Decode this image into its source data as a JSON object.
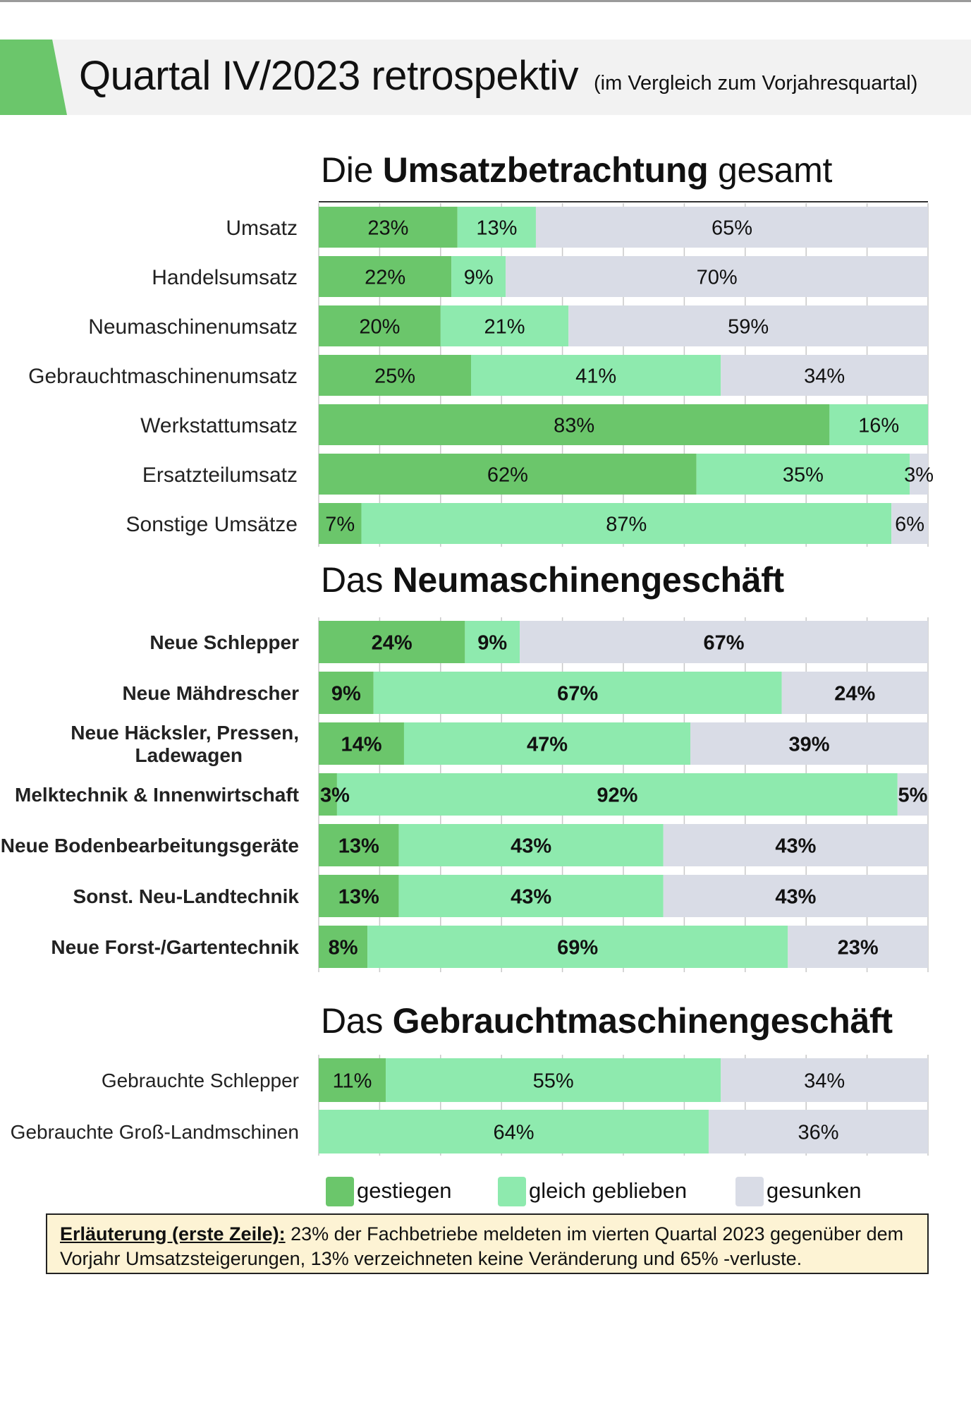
{
  "header": {
    "title": "Quartal IV/2023 retrospektiv",
    "subtitle": "(im Vergleich zum Vorjahresquartal)"
  },
  "sections": [
    {
      "title_prefix": "Die",
      "title_bold": "Umsatzbetrachtung",
      "title_suffix": "gesamt"
    },
    {
      "title_prefix": "Das",
      "title_bold": "Neumaschinengeschäft",
      "title_suffix": ""
    },
    {
      "title_prefix": "Das",
      "title_bold": "Gebrauchtmaschinengeschäft",
      "title_suffix": ""
    }
  ],
  "colors": {
    "gestiegen": "#6bc66b",
    "gleich_geblieben": "#8eeaae",
    "gesunken": "#d9dce6",
    "grid": "#c8c8c8"
  },
  "chart_data": [
    {
      "type": "bar",
      "orientation": "horizontal-stacked-100",
      "categories": [
        "Umsatz",
        "Handelsumsatz",
        "Neumaschinenumsatz",
        "Gebrauchtmaschinenumsatz",
        "Werkstattumsatz",
        "Ersatzteilumsatz",
        "Sonstige Umsätze"
      ],
      "series": [
        {
          "name": "gestiegen",
          "values": [
            23,
            22,
            20,
            25,
            83,
            62,
            7
          ]
        },
        {
          "name": "gleich geblieben",
          "values": [
            13,
            9,
            21,
            41,
            16,
            35,
            87
          ]
        },
        {
          "name": "gesunken",
          "values": [
            65,
            70,
            59,
            34,
            0,
            3,
            6
          ]
        }
      ],
      "labels": [
        [
          "23%",
          "13%",
          "65%"
        ],
        [
          "22%",
          "9%",
          "70%"
        ],
        [
          "20%",
          "21%",
          "59%"
        ],
        [
          "25%",
          "41%",
          "34%"
        ],
        [
          "83%",
          "16%",
          ""
        ],
        [
          "62%",
          "35%",
          "3%"
        ],
        [
          "7%",
          "87%",
          "6%"
        ]
      ],
      "xlim": [
        0,
        100
      ],
      "grid": true
    },
    {
      "type": "bar",
      "orientation": "horizontal-stacked-100",
      "categories": [
        "Neue Schlepper",
        "Neue Mähdrescher",
        "Neue Häcksler, Pressen, Ladewagen",
        "Melktechnik & Innenwirtschaft",
        "Neue Bodenbearbeitungsgeräte",
        "Sonst. Neu-Landtechnik",
        "Neue Forst-/Gartentechnik"
      ],
      "series": [
        {
          "name": "gestiegen",
          "values": [
            24,
            9,
            14,
            3,
            13,
            13,
            8
          ]
        },
        {
          "name": "gleich geblieben",
          "values": [
            9,
            67,
            47,
            92,
            43,
            43,
            69
          ]
        },
        {
          "name": "gesunken",
          "values": [
            67,
            24,
            39,
            5,
            43,
            43,
            23
          ]
        }
      ],
      "labels": [
        [
          "24%",
          "9%",
          "67%"
        ],
        [
          "9%",
          "67%",
          "24%"
        ],
        [
          "14%",
          "47%",
          "39%"
        ],
        [
          "3%",
          "92%",
          "5%"
        ],
        [
          "13%",
          "43%",
          "43%"
        ],
        [
          "13%",
          "43%",
          "43%"
        ],
        [
          "8%",
          "69%",
          "23%"
        ]
      ],
      "xlim": [
        0,
        100
      ],
      "grid": true
    },
    {
      "type": "bar",
      "orientation": "horizontal-stacked-100",
      "categories": [
        "Gebrauchte Schlepper",
        "Gebrauchte Groß-Landmschinen"
      ],
      "series": [
        {
          "name": "gestiegen",
          "values": [
            11,
            0
          ]
        },
        {
          "name": "gleich geblieben",
          "values": [
            55,
            64
          ]
        },
        {
          "name": "gesunken",
          "values": [
            34,
            36
          ]
        }
      ],
      "labels": [
        [
          "11%",
          "55%",
          "34%"
        ],
        [
          "",
          "64%",
          "36%"
        ]
      ],
      "xlim": [
        0,
        100
      ],
      "grid": true
    }
  ],
  "legend": {
    "items": [
      {
        "label": "gestiegen",
        "color": "#6bc66b"
      },
      {
        "label": "gleich geblieben",
        "color": "#8eeaae"
      },
      {
        "label": "gesunken",
        "color": "#d9dce6"
      }
    ]
  },
  "note": {
    "label": "Erläuterung (erste Zeile):",
    "text": "23% der Fachbetriebe meldeten im vierten Quartal 2023 gegenüber dem Vorjahr Umsatzsteigerungen, 13% verzeichneten keine Veränderung und 65% -verluste."
  }
}
